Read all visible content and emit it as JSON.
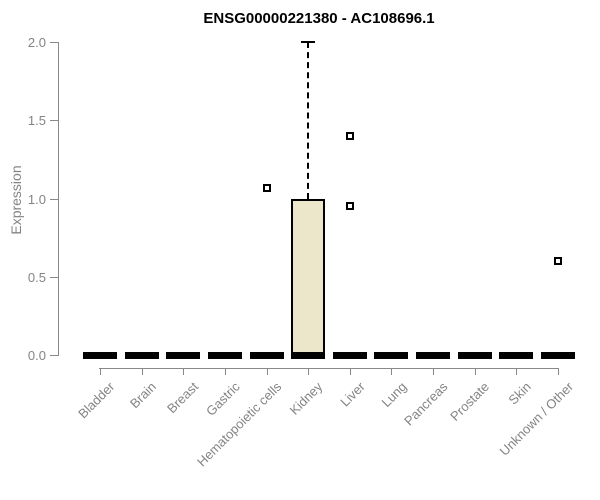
{
  "chart_data": {
    "type": "boxplot",
    "title": "ENSG00000221380 - AC108696.1",
    "xlabel": "",
    "ylabel": "Expression",
    "ylim": [
      0.0,
      2.0
    ],
    "yticks": [
      "0.0",
      "0.5",
      "1.0",
      "1.5",
      "2.0"
    ],
    "ytick_values": [
      0.0,
      0.5,
      1.0,
      1.5,
      2.0
    ],
    "grid": "off",
    "legend": "none",
    "categories": [
      "Bladder",
      "Brain",
      "Breast",
      "Gastric",
      "Hematopoietic cells",
      "Kidney",
      "Liver",
      "Lung",
      "Pancreas",
      "Prostate",
      "Skin",
      "Unknown / Other"
    ],
    "boxes": [
      {
        "category": "Bladder",
        "whisker_low": 0.0,
        "q1": 0.0,
        "median": 0.0,
        "q3": 0.0,
        "whisker_high": 0.0
      },
      {
        "category": "Brain",
        "whisker_low": 0.0,
        "q1": 0.0,
        "median": 0.0,
        "q3": 0.0,
        "whisker_high": 0.0
      },
      {
        "category": "Breast",
        "whisker_low": 0.0,
        "q1": 0.0,
        "median": 0.0,
        "q3": 0.0,
        "whisker_high": 0.0
      },
      {
        "category": "Gastric",
        "whisker_low": 0.0,
        "q1": 0.0,
        "median": 0.0,
        "q3": 0.0,
        "whisker_high": 0.0
      },
      {
        "category": "Hematopoietic cells",
        "whisker_low": 0.0,
        "q1": 0.0,
        "median": 0.0,
        "q3": 0.0,
        "whisker_high": 0.0
      },
      {
        "category": "Kidney",
        "whisker_low": 0.0,
        "q1": 0.0,
        "median": 0.0,
        "q3": 1.0,
        "whisker_high": 2.0
      },
      {
        "category": "Liver",
        "whisker_low": 0.0,
        "q1": 0.0,
        "median": 0.0,
        "q3": 0.0,
        "whisker_high": 0.0
      },
      {
        "category": "Lung",
        "whisker_low": 0.0,
        "q1": 0.0,
        "median": 0.0,
        "q3": 0.0,
        "whisker_high": 0.0
      },
      {
        "category": "Pancreas",
        "whisker_low": 0.0,
        "q1": 0.0,
        "median": 0.0,
        "q3": 0.0,
        "whisker_high": 0.0
      },
      {
        "category": "Prostate",
        "whisker_low": 0.0,
        "q1": 0.0,
        "median": 0.0,
        "q3": 0.0,
        "whisker_high": 0.0
      },
      {
        "category": "Skin",
        "whisker_low": 0.0,
        "q1": 0.0,
        "median": 0.0,
        "q3": 0.0,
        "whisker_high": 0.0
      },
      {
        "category": "Unknown / Other",
        "whisker_low": 0.0,
        "q1": 0.0,
        "median": 0.0,
        "q3": 0.0,
        "whisker_high": 0.0
      }
    ],
    "outliers": [
      {
        "category": "Hematopoietic cells",
        "value": 1.07
      },
      {
        "category": "Liver",
        "value": 1.4
      },
      {
        "category": "Liver",
        "value": 0.95
      },
      {
        "category": "Unknown / Other",
        "value": 0.6
      }
    ],
    "colors": {
      "box_fill": "#ECE7CB",
      "box_border": "#000000",
      "axis_line": "#888888",
      "axis_text": "#848484",
      "title_text": "#000000",
      "background": "#ffffff"
    }
  }
}
